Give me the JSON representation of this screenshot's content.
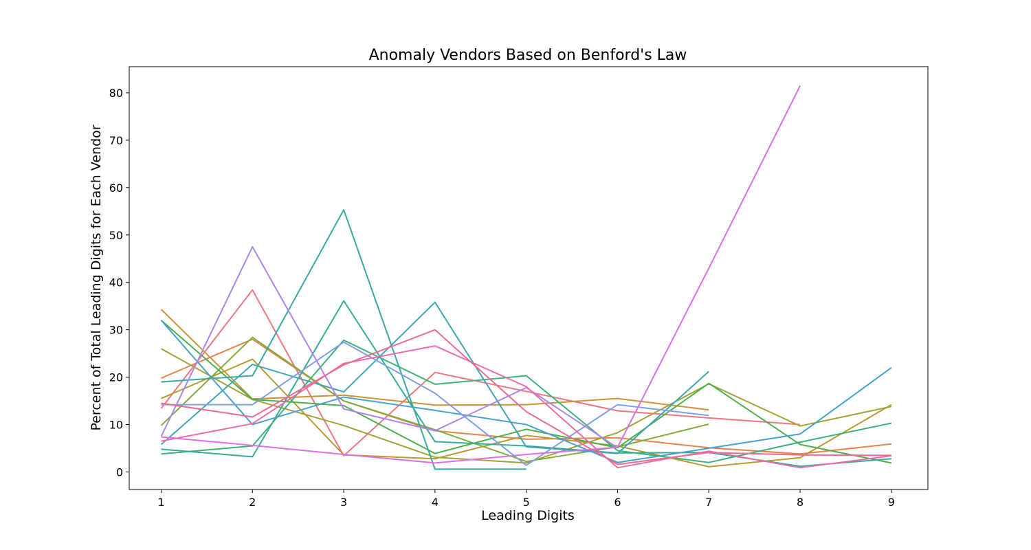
{
  "chart_data": {
    "type": "line",
    "title": "Anomaly Vendors Based on Benford's Law",
    "xlabel": "Leading Digits",
    "ylabel": "Percent of Total Leading Digits for Each Vendor",
    "x": [
      1,
      2,
      3,
      4,
      5,
      6,
      7,
      8,
      9
    ],
    "xticks": [
      1,
      2,
      3,
      4,
      5,
      6,
      7,
      8,
      9
    ],
    "yticks": [
      0,
      10,
      20,
      30,
      40,
      50,
      60,
      70,
      80
    ],
    "xlim": [
      0.65,
      9.4
    ],
    "ylim": [
      -3.7,
      85.5
    ],
    "grid": false,
    "series": [
      {
        "color": "#f07582",
        "values": [
          13.4,
          38.4,
          3.4,
          21.0,
          17.0,
          12.9,
          11.4,
          10.0,
          null
        ]
      },
      {
        "color": "#e8824a",
        "values": [
          19.8,
          28.0,
          15.0,
          8.7,
          6.9,
          7.2,
          5.1,
          3.8,
          5.9
        ]
      },
      {
        "color": "#c99336",
        "values": [
          34.3,
          15.4,
          16.2,
          14.1,
          14.2,
          15.5,
          13.1,
          null,
          null
        ]
      },
      {
        "color": "#b89a31",
        "values": [
          15.5,
          23.8,
          3.6,
          2.8,
          7.7,
          5.5,
          1.1,
          3.0,
          14.2
        ]
      },
      {
        "color": "#a1a336",
        "values": [
          26.0,
          15.3,
          9.8,
          3.1,
          1.9,
          8.3,
          18.6,
          9.7,
          13.8
        ]
      },
      {
        "color": "#80ac3c",
        "values": [
          9.8,
          28.4,
          15.0,
          8.9,
          2.2,
          5.3,
          10.1,
          null,
          null
        ]
      },
      {
        "color": "#4cb04a",
        "values": [
          32.0,
          15.3,
          14.0,
          3.9,
          9.0,
          5.1,
          18.7,
          5.8,
          1.9
        ]
      },
      {
        "color": "#3bb277",
        "values": [
          3.8,
          5.5,
          27.8,
          18.5,
          20.3,
          4.5,
          2.0,
          6.3,
          10.3
        ]
      },
      {
        "color": "#35ac9a",
        "values": [
          4.8,
          3.2,
          36.1,
          6.4,
          5.5,
          4.0,
          4.1,
          1.2,
          2.8
        ]
      },
      {
        "color": "#37a8a5",
        "values": [
          19.0,
          20.3,
          55.3,
          0.6,
          0.6,
          null,
          null,
          null,
          null
        ]
      },
      {
        "color": "#3fa6b4",
        "values": [
          5.8,
          22.7,
          16.9,
          35.8,
          5.3,
          3.9,
          21.2,
          null,
          null
        ]
      },
      {
        "color": "#45a2cb",
        "values": [
          32.0,
          10.0,
          15.8,
          13.0,
          10.0,
          2.0,
          5.0,
          8.0,
          22.0
        ]
      },
      {
        "color": "#7f9ee8",
        "values": [
          14.2,
          14.2,
          27.4,
          16.6,
          1.4,
          14.2,
          11.9,
          null,
          null
        ]
      },
      {
        "color": "#ad84ed",
        "values": [
          7.5,
          47.5,
          13.3,
          8.7,
          17.8,
          5.1,
          null,
          null,
          null
        ]
      },
      {
        "color": "#dc6eea",
        "values": [
          7.4,
          5.6,
          3.7,
          1.9,
          3.7,
          5.2,
          43.0,
          81.5,
          null
        ]
      },
      {
        "color": "#e66ec2",
        "values": [
          null,
          null,
          null,
          null,
          null,
          null,
          null,
          81.5,
          null
        ]
      },
      {
        "color": "#ef6aa9",
        "values": [
          6.5,
          10.2,
          22.9,
          26.6,
          18.0,
          0.9,
          4.4,
          0.9,
          3.4
        ]
      },
      {
        "color": "#ee6a93",
        "values": [
          14.5,
          11.6,
          22.6,
          30.0,
          12.7,
          1.6,
          4.1,
          3.6,
          3.5
        ]
      }
    ]
  }
}
